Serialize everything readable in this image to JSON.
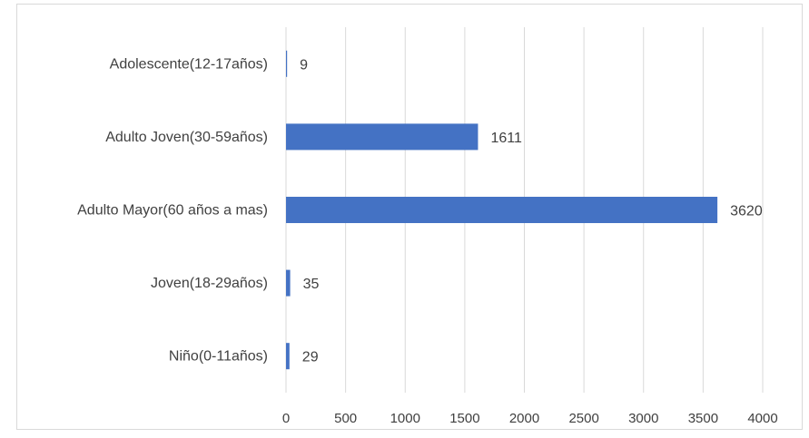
{
  "chart_data": {
    "type": "bar",
    "orientation": "horizontal",
    "title": "",
    "xlabel": "",
    "ylabel": "",
    "categories": [
      "Adolescente(12-17años)",
      "Adulto Joven(30-59años)",
      "Adulto Mayor(60 años a mas)",
      "Joven(18-29años)",
      "Niño(0-11años)"
    ],
    "values": [
      9,
      1611,
      3620,
      35,
      29
    ],
    "xlim": [
      0,
      4000
    ],
    "x_ticks": [
      0,
      500,
      1000,
      1500,
      2000,
      2500,
      3000,
      3500,
      4000
    ],
    "grid": "vertical",
    "legend": "none",
    "bar_color": "#4472c4",
    "data_labels": true
  }
}
